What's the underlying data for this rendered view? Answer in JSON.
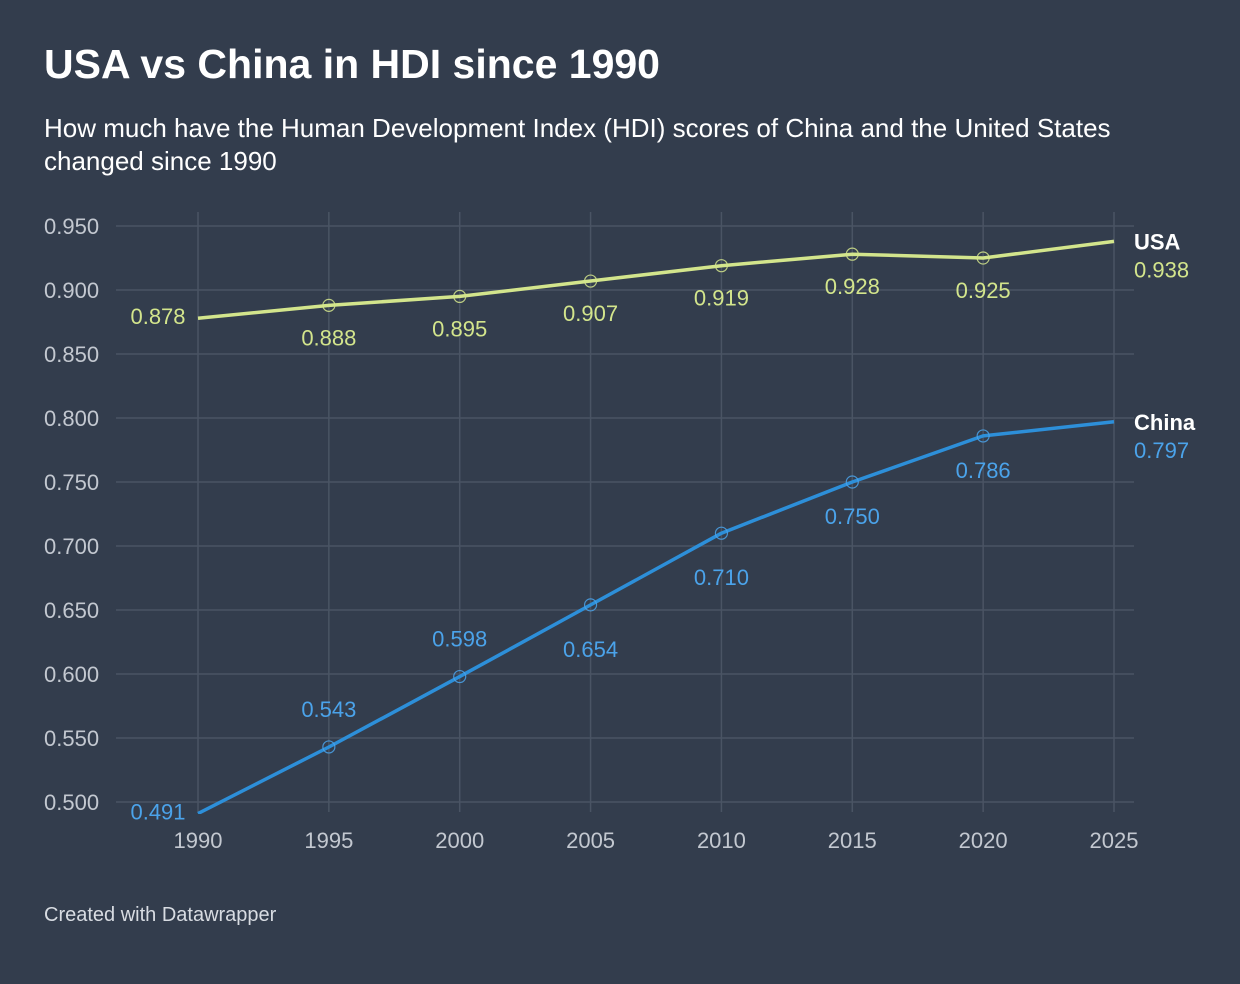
{
  "title": "USA vs China in HDI since 1990",
  "subtitle": "How much have the Human Development Index (HDI) scores of China and the United States changed since 1990",
  "footer": "Created with Datawrapper",
  "chart_data": {
    "type": "line",
    "x": [
      1990,
      1995,
      2000,
      2005,
      2010,
      2015,
      2020,
      2025
    ],
    "xlim": [
      1990,
      2025
    ],
    "ylim": [
      0.5,
      0.95
    ],
    "y_ticks": [
      "0.950",
      "0.900",
      "0.850",
      "0.800",
      "0.750",
      "0.700",
      "0.650",
      "0.600",
      "0.550",
      "0.500"
    ],
    "x_ticks": [
      "1990",
      "1995",
      "2000",
      "2005",
      "2010",
      "2015",
      "2020",
      "2025"
    ],
    "grid": true,
    "series": [
      {
        "name": "USA",
        "color": "#d3e58c",
        "values": [
          0.878,
          0.888,
          0.895,
          0.907,
          0.919,
          0.928,
          0.925,
          0.938
        ],
        "labels": [
          "0.878",
          "0.888",
          "0.895",
          "0.907",
          "0.919",
          "0.928",
          "0.925",
          "0.938"
        ]
      },
      {
        "name": "China",
        "color": "#2d8fd9",
        "label_color": "#4ba3ea",
        "values": [
          0.491,
          0.543,
          0.598,
          0.654,
          0.71,
          0.75,
          0.786,
          0.797
        ],
        "labels": [
          "0.491",
          "0.543",
          "0.598",
          "0.654",
          "0.710",
          "0.750",
          "0.786",
          "0.797"
        ]
      }
    ]
  }
}
